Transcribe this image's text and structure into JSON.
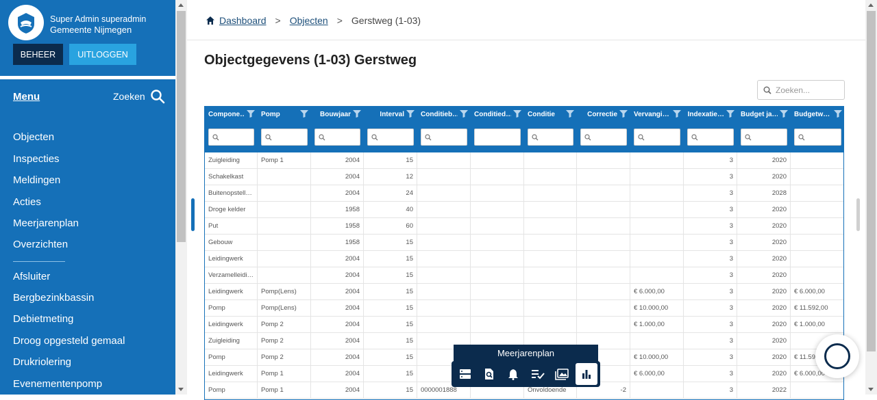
{
  "sidebar": {
    "user_line": "Super Admin superadmin",
    "org_line": "Gemeente Nijmegen",
    "btn_beheer": "BEHEER",
    "btn_uitloggen": "UITLOGGEN",
    "menu_title": "Menu",
    "zoeken_label": "Zoeken",
    "items": [
      "Objecten",
      "Inspecties",
      "Meldingen",
      "Acties",
      "Meerjarenplan",
      "Overzichten"
    ],
    "items2": [
      "Afsluiter",
      "Bergbezinkbassin",
      "Debietmeting",
      "Droog opgesteld gemaal",
      "Drukriolering",
      "Evenementenpomp"
    ]
  },
  "breadcrumb": {
    "home": "Dashboard",
    "objecten": "Objecten",
    "current": "Gerstweg (1-03)",
    "separator": ">"
  },
  "page_title": "Objectgegevens (1-03) Gerstweg",
  "grid_search_placeholder": "Zoeken...",
  "grid": {
    "columns": [
      "Compone…",
      "Pomp",
      "Bouwjaar",
      "Interval",
      "Conditieb…",
      "Conditied…",
      "Conditie",
      "Correctie",
      "Vervangi…",
      "Indexatie…",
      "Budget ja…",
      "Budgetw…"
    ],
    "rows": [
      [
        "Zuigleiding",
        "Pomp 1",
        "2004",
        "15",
        "",
        "",
        "",
        "",
        "",
        "3",
        "2020",
        ""
      ],
      [
        "Schakelkast",
        "",
        "2004",
        "12",
        "",
        "",
        "",
        "",
        "",
        "3",
        "2020",
        ""
      ],
      [
        "Buitenopstell…",
        "",
        "2004",
        "24",
        "",
        "",
        "",
        "",
        "",
        "3",
        "2028",
        ""
      ],
      [
        "Droge kelder",
        "",
        "1958",
        "40",
        "",
        "",
        "",
        "",
        "",
        "3",
        "2020",
        ""
      ],
      [
        "Put",
        "",
        "1958",
        "60",
        "",
        "",
        "",
        "",
        "",
        "3",
        "2020",
        ""
      ],
      [
        "Gebouw",
        "",
        "1958",
        "15",
        "",
        "",
        "",
        "",
        "",
        "3",
        "2020",
        ""
      ],
      [
        "Leidingwerk",
        "",
        "2004",
        "15",
        "",
        "",
        "",
        "",
        "",
        "3",
        "2020",
        ""
      ],
      [
        "Verzamelleidi…",
        "",
        "2004",
        "15",
        "",
        "",
        "",
        "",
        "",
        "3",
        "2020",
        ""
      ],
      [
        "Leidingwerk",
        "Pomp(Lens)",
        "2004",
        "15",
        "",
        "",
        "",
        "",
        "€ 6.000,00",
        "3",
        "2020",
        "€ 6.000,00"
      ],
      [
        "Pomp",
        "Pomp(Lens)",
        "2004",
        "15",
        "",
        "",
        "",
        "",
        "€ 10.000,00",
        "3",
        "2020",
        "€ 11.592,00"
      ],
      [
        "Leidingwerk",
        "Pomp 2",
        "2004",
        "15",
        "",
        "",
        "",
        "",
        "€ 1.000,00",
        "3",
        "2020",
        "€ 1.000,00"
      ],
      [
        "Zuigleiding",
        "Pomp 2",
        "2004",
        "15",
        "",
        "",
        "",
        "",
        "",
        "3",
        "2020",
        ""
      ],
      [
        "Pomp",
        "Pomp 2",
        "2004",
        "15",
        "",
        "",
        "",
        "",
        "€ 10.000,00",
        "3",
        "2020",
        "€ 11.59"
      ],
      [
        "Leidingwerk",
        "Pomp 1",
        "2004",
        "15",
        "",
        "",
        "",
        "",
        "€ 6.000,00",
        "3",
        "2020",
        "€ 6.000,00"
      ],
      [
        "Pomp",
        "Pomp 1",
        "2004",
        "15",
        "0000001888",
        "",
        "Onvoldoende",
        "-2",
        "",
        "3",
        "2022",
        ""
      ]
    ]
  },
  "toolbar": {
    "title": "Meerjarenplan",
    "icons": [
      "server-icon",
      "search-document-icon",
      "bell-icon",
      "checklist-icon",
      "images-icon",
      "bar-chart-icon"
    ]
  },
  "colors": {
    "sidebar": "#1570b8",
    "dark": "#0b2b4d",
    "accent": "#29a3e0"
  }
}
